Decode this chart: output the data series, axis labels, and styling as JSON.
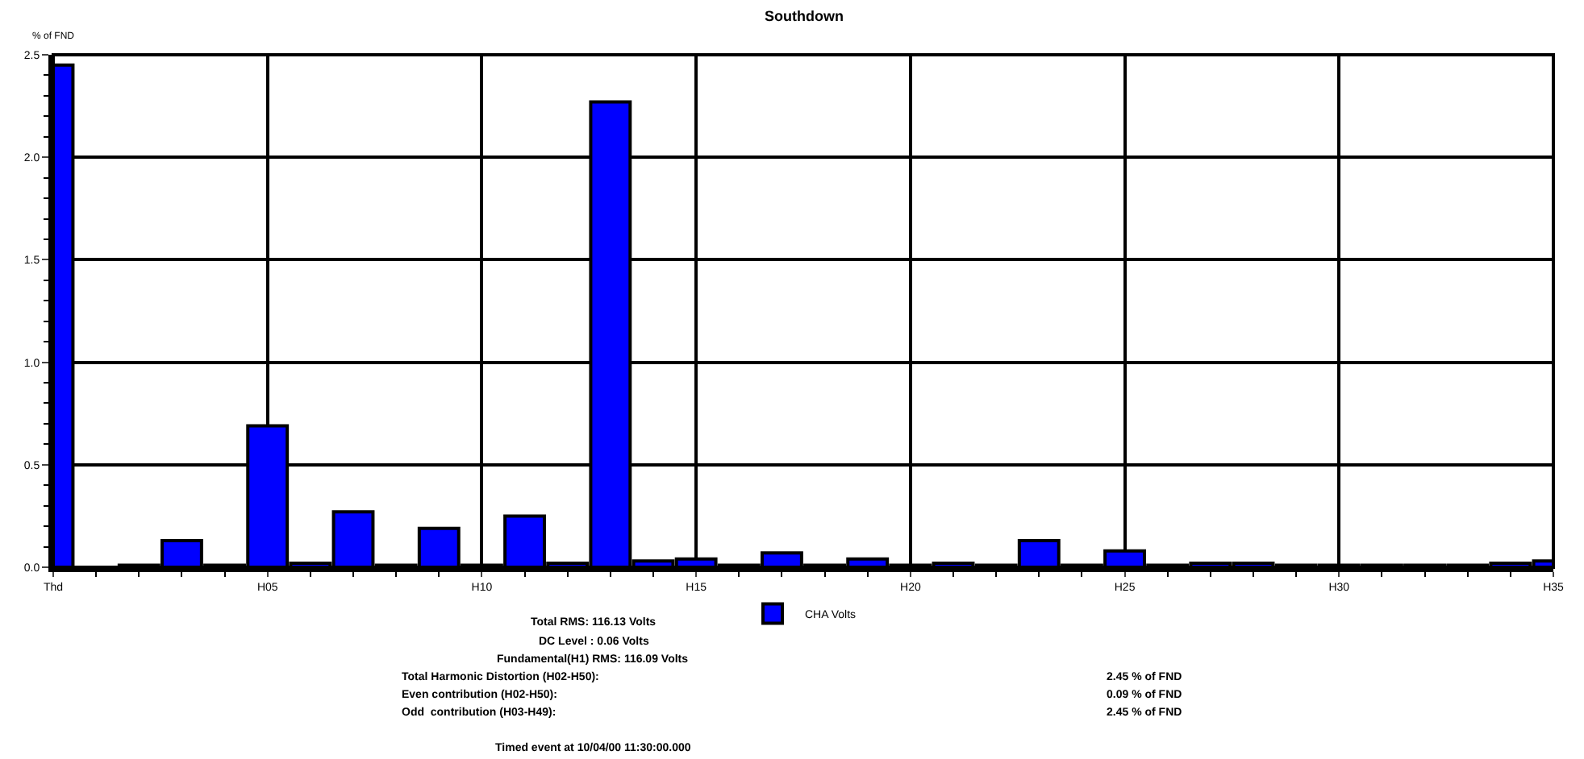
{
  "chart_data": {
    "type": "bar",
    "title": "Southdown",
    "ylabel": "% of FND",
    "categories": [
      "Thd",
      null,
      null,
      null,
      null,
      "H05",
      null,
      null,
      null,
      null,
      "H10",
      null,
      null,
      null,
      null,
      "H15",
      null,
      null,
      null,
      null,
      "H20",
      null,
      null,
      null,
      null,
      "H25",
      null,
      null,
      null,
      null,
      "H30",
      null,
      null,
      null,
      null,
      "H35"
    ],
    "series": [
      {
        "name": "CHA Volts",
        "color": "#0000ff",
        "values": [
          2.45,
          null,
          0.01,
          0.13,
          0.01,
          0.69,
          0.02,
          0.27,
          0.01,
          0.19,
          0.01,
          0.25,
          0.02,
          2.27,
          0.03,
          0.04,
          0.01,
          0.07,
          0.01,
          0.04,
          0.01,
          0.02,
          0.01,
          0.13,
          0.01,
          0.08,
          0.01,
          0.02,
          0.02,
          0.01,
          0.01,
          0.01,
          0.01,
          0.01,
          0.02,
          0.03
        ]
      }
    ],
    "ylim": [
      0,
      2.5
    ],
    "yticks": [
      {
        "value": 0,
        "label": "0.0"
      },
      {
        "value": 0.5,
        "label": "0.5"
      },
      {
        "value": 1,
        "label": "1.0"
      },
      {
        "value": 1.5,
        "label": "1.5"
      },
      {
        "value": 2,
        "label": "2.0"
      },
      {
        "value": 2.5,
        "label": "2.5"
      }
    ],
    "grid": true,
    "legend": "bottom",
    "annotations": [
      "Total RMS: 116.13 Volts",
      "DC Level : 0.06 Volts",
      "Fundamental(H1) RMS: 116.09 Volts",
      "Total Harmonic Distortion (H02-H50):",
      "2.45 % of FND",
      "Even contribution (H02-H50):",
      "0.09 % of FND",
      "Odd  contribution (H03-H49):",
      "2.45 % of FND",
      "Timed event at 10/04/00 11:30:00.000"
    ]
  }
}
